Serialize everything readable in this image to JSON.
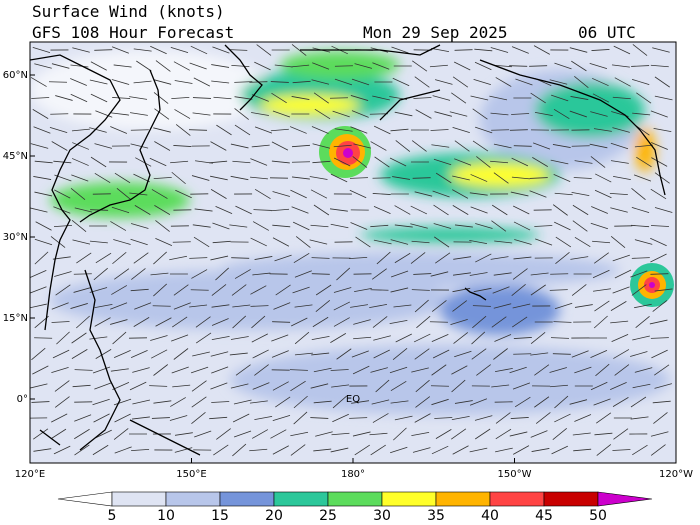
{
  "header": {
    "title": "Surface Wind (knots)",
    "subtitle": "GFS 108 Hour Forecast",
    "date": "Mon 29 Sep 2025",
    "time": "06 UTC"
  },
  "map": {
    "lat_labels": [
      "60°N",
      "45°N",
      "30°N",
      "15°N",
      "0°"
    ],
    "lon_labels": [
      "120°E",
      "150°E",
      "180°",
      "150°W",
      "120°W"
    ],
    "annotations": [
      "EQ"
    ]
  },
  "colorbar": {
    "ticks": [
      5,
      10,
      15,
      20,
      25,
      30,
      35,
      40,
      45,
      50
    ],
    "colors": [
      "#ffffff",
      "#dfe4f3",
      "#b8c6ea",
      "#7594da",
      "#2cc79a",
      "#5cdc5c",
      "#ffff2a",
      "#ffb400",
      "#ff4444",
      "#c80000",
      "#cc00cc"
    ]
  }
}
